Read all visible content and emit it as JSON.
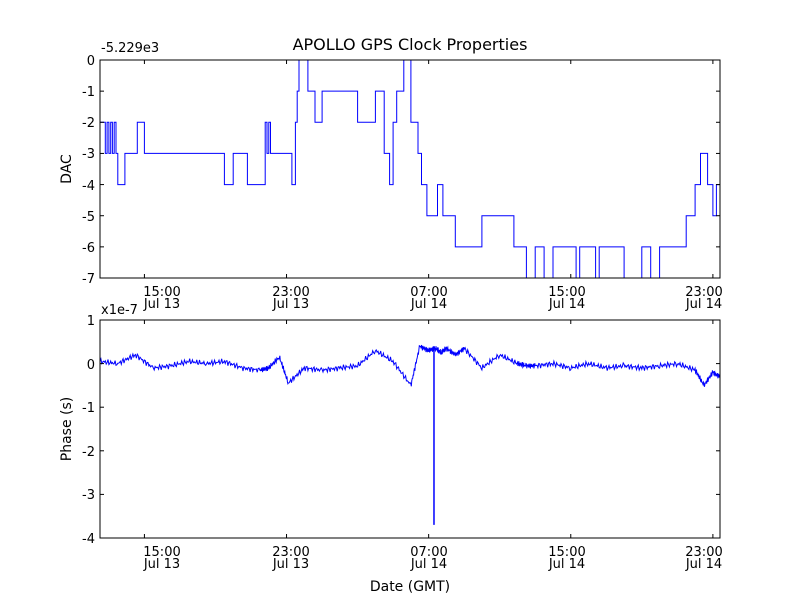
{
  "figure": {
    "title": "APOLLO GPS Clock Properties",
    "xlabel": "Date (GMT)",
    "x_ticks": [
      {
        "time": "15:00",
        "date": "Jul 13"
      },
      {
        "time": "23:00",
        "date": "Jul 13"
      },
      {
        "time": "07:00",
        "date": "Jul 14"
      },
      {
        "time": "15:00",
        "date": "Jul 14"
      },
      {
        "time": "23:00",
        "date": "Jul 14"
      }
    ]
  },
  "chart_data": [
    {
      "type": "line",
      "title": "APOLLO GPS Clock Properties",
      "ylabel": "DAC",
      "offset_label": "-5.229e3",
      "xlim_hours": [
        12.5,
        47.4
      ],
      "ylim": [
        -7,
        0
      ],
      "yticks": [
        "0",
        "-1",
        "-2",
        "-3",
        "-4",
        "-5",
        "-6",
        "-7"
      ],
      "line_color": "#0000ff",
      "x_hours": [
        12.5,
        12.8,
        12.9,
        13.0,
        13.1,
        13.2,
        13.3,
        13.4,
        13.5,
        13.6,
        13.9,
        14.3,
        14.6,
        15.0,
        15.5,
        16.0,
        17.0,
        18.0,
        19.5,
        20.0,
        20.8,
        21.0,
        21.7,
        21.8,
        21.9,
        22.0,
        22.1,
        22.8,
        23.2,
        23.3,
        23.5,
        23.6,
        23.7,
        24.0,
        24.2,
        24.6,
        24.8,
        25.0,
        25.5,
        26.0,
        26.5,
        27.0,
        28.0,
        28.5,
        28.8,
        29.0,
        29.2,
        29.6,
        30.0,
        30.4,
        30.6,
        30.9,
        31.2,
        31.5,
        31.8,
        32.0,
        32.5,
        33.0,
        34.0,
        35.0,
        35.8,
        36.0,
        36.5,
        37.0,
        37.5,
        38.0,
        39.0,
        39.3,
        39.5,
        40.0,
        40.4,
        40.6,
        41.0,
        41.5,
        42.0,
        43.0,
        43.5,
        44.0,
        44.5,
        45.0,
        45.5,
        46.0,
        46.3,
        46.7,
        47.0,
        47.2,
        47.4
      ],
      "y_values": [
        -2,
        -3,
        -2,
        -3,
        -2,
        -3,
        -2,
        -3,
        -4,
        -4,
        -3,
        -3,
        -2,
        -3,
        -3,
        -3,
        -3,
        -3,
        -4,
        -3,
        -4,
        -4,
        -4,
        -2,
        -3,
        -2,
        -3,
        -3,
        -3,
        -4,
        -2,
        -1,
        0,
        0,
        -1,
        -2,
        -2,
        -1,
        -1,
        -1,
        -1,
        -2,
        -1,
        -3,
        -4,
        -2,
        -1,
        0,
        -2,
        -3,
        -4,
        -5,
        -5,
        -4,
        -5,
        -5,
        -6,
        -6,
        -5,
        -5,
        -6,
        -6,
        -7,
        -6,
        -7,
        -6,
        -6,
        -7,
        -6,
        -6,
        -7,
        -6,
        -6,
        -6,
        -7,
        -6,
        -7,
        -6,
        -6,
        -6,
        -5,
        -4,
        -3,
        -4,
        -5,
        -4,
        -5
      ]
    },
    {
      "type": "line",
      "ylabel": "Phase (s)",
      "offset_label": "x1e-7",
      "xlim_hours": [
        12.5,
        47.4
      ],
      "ylim": [
        -4,
        1
      ],
      "yticks": [
        "1",
        "0",
        "-1",
        "-2",
        "-3",
        "-4"
      ],
      "line_color": "#0000ff",
      "x_hours": [
        12.5,
        13.5,
        14.5,
        15.5,
        16.5,
        17.5,
        18.5,
        19.5,
        20.5,
        21.5,
        22.0,
        22.6,
        23.1,
        24.0,
        25.0,
        26.0,
        27.0,
        28.0,
        29.0,
        30.0,
        30.5,
        31.0,
        31.4,
        31.7,
        32.0,
        32.5,
        33.0,
        34.0,
        35.0,
        36.0,
        36.5,
        37.0,
        38.0,
        39.0,
        40.0,
        41.0,
        42.0,
        43.0,
        44.0,
        45.0,
        46.0,
        46.5,
        47.0,
        47.4
      ],
      "y_values": [
        0.05,
        0.0,
        0.2,
        -0.1,
        -0.05,
        0.05,
        0.0,
        0.05,
        -0.1,
        -0.15,
        -0.1,
        0.15,
        -0.45,
        -0.1,
        -0.15,
        -0.1,
        -0.05,
        0.3,
        0.05,
        -0.5,
        0.4,
        0.3,
        0.35,
        0.25,
        0.35,
        0.2,
        0.35,
        -0.1,
        0.2,
        0.0,
        -0.05,
        -0.05,
        0.0,
        -0.1,
        0.0,
        -0.1,
        -0.05,
        -0.1,
        -0.05,
        0.0,
        -0.15,
        -0.5,
        -0.2,
        -0.3
      ],
      "spike": {
        "x_hour": 31.3,
        "min": -3.7,
        "max": 0.4
      }
    }
  ]
}
